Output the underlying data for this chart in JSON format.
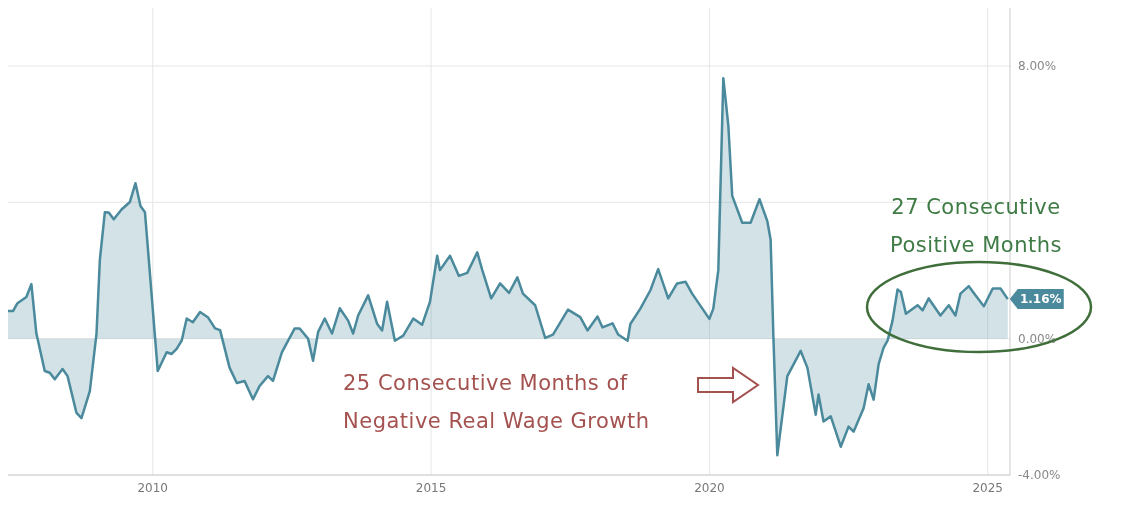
{
  "chart_data": {
    "type": "area",
    "x": [
      2007.4,
      2007.49,
      2007.57,
      2007.73,
      2007.82,
      2007.91,
      2008.06,
      2008.15,
      2008.24,
      2008.38,
      2008.47,
      2008.63,
      2008.72,
      2008.87,
      2008.99,
      2009.05,
      2009.14,
      2009.21,
      2009.3,
      2009.44,
      2009.59,
      2009.69,
      2009.78,
      2009.86,
      2009.91,
      2010.09,
      2010.25,
      2010.34,
      2010.43,
      2010.52,
      2010.61,
      2010.72,
      2010.85,
      2010.99,
      2011.12,
      2011.21,
      2011.38,
      2011.51,
      2011.65,
      2011.8,
      2011.92,
      2012.07,
      2012.16,
      2012.32,
      2012.55,
      2012.64,
      2012.79,
      2012.88,
      2012.97,
      2013.09,
      2013.22,
      2013.36,
      2013.51,
      2013.6,
      2013.69,
      2013.87,
      2014.03,
      2014.12,
      2014.21,
      2014.35,
      2014.5,
      2014.68,
      2014.84,
      2014.98,
      2015.11,
      2015.16,
      2015.34,
      2015.5,
      2015.65,
      2015.83,
      2015.92,
      2016.08,
      2016.24,
      2016.4,
      2016.55,
      2016.65,
      2016.87,
      2017.05,
      2017.19,
      2017.46,
      2017.68,
      2017.81,
      2017.99,
      2018.08,
      2018.26,
      2018.36,
      2018.53,
      2018.58,
      2018.76,
      2018.94,
      2019.08,
      2019.26,
      2019.42,
      2019.57,
      2019.69,
      2020.0,
      2020.07,
      2020.16,
      2020.25,
      2020.34,
      2020.41,
      2020.59,
      2020.74,
      2020.9,
      2021.04,
      2021.1,
      2021.15,
      2021.22,
      2021.4,
      2021.64,
      2021.76,
      2021.91,
      2021.96,
      2022.05,
      2022.18,
      2022.36,
      2022.5,
      2022.59,
      2022.77,
      2022.86,
      2022.95,
      2023.04,
      2023.13,
      2023.2,
      2023.29,
      2023.38,
      2023.44,
      2023.53,
      2023.74,
      2023.83,
      2023.94,
      2024.15,
      2024.3,
      2024.42,
      2024.51,
      2024.66,
      2024.78,
      2024.93,
      2025.09,
      2025.23,
      2025.36
    ],
    "series": [
      {
        "color": "#4a8a9c",
        "values": [
          0.81,
          0.81,
          1.04,
          1.22,
          1.6,
          0.15,
          -0.95,
          -1.0,
          -1.19,
          -0.89,
          -1.1,
          -2.18,
          -2.33,
          -1.54,
          0.15,
          2.31,
          3.71,
          3.7,
          3.5,
          3.79,
          4.01,
          4.56,
          3.89,
          3.71,
          2.71,
          -0.95,
          -0.4,
          -0.45,
          -0.3,
          -0.06,
          0.59,
          0.48,
          0.78,
          0.63,
          0.3,
          0.25,
          -0.85,
          -1.3,
          -1.24,
          -1.78,
          -1.39,
          -1.1,
          -1.24,
          -0.4,
          0.3,
          0.3,
          0.0,
          -0.65,
          0.19,
          0.59,
          0.15,
          0.89,
          0.53,
          0.15,
          0.68,
          1.27,
          0.44,
          0.24,
          1.08,
          -0.06,
          0.09,
          0.59,
          0.41,
          1.08,
          2.43,
          2.01,
          2.43,
          1.84,
          1.93,
          2.53,
          2.01,
          1.18,
          1.62,
          1.34,
          1.8,
          1.32,
          0.98,
          0.02,
          0.12,
          0.85,
          0.63,
          0.24,
          0.65,
          0.33,
          0.45,
          0.12,
          -0.06,
          0.43,
          0.88,
          1.42,
          2.04,
          1.18,
          1.62,
          1.67,
          1.32,
          0.58,
          0.88,
          2.01,
          7.64,
          6.26,
          4.19,
          3.4,
          3.4,
          4.09,
          3.45,
          2.9,
          0.04,
          -3.42,
          -1.1,
          -0.36,
          -0.85,
          -2.23,
          -1.64,
          -2.43,
          -2.28,
          -3.17,
          -2.58,
          -2.73,
          -2.04,
          -1.34,
          -1.79,
          -0.75,
          -0.26,
          -0.06,
          0.53,
          1.44,
          1.37,
          0.73,
          0.98,
          0.83,
          1.18,
          0.68,
          0.98,
          0.68,
          1.32,
          1.54,
          1.27,
          0.95,
          1.47,
          1.47,
          1.16
        ]
      }
    ],
    "xlim": [
      2007.4,
      2025.4
    ],
    "xticks": [
      2010,
      2015,
      2020,
      2025
    ],
    "ylim": [
      -4,
      9.7
    ],
    "yticks": [
      {
        "value": 8,
        "label": "8.00%"
      },
      {
        "value": 4,
        "label": null
      },
      {
        "value": 0,
        "label": "0.00%"
      },
      {
        "value": -4,
        "label": "-4.00%"
      }
    ],
    "grid": true,
    "annotations": [
      "25 Consecutive Months of Negative Real Wage Growth",
      "27 Consecutive Positive Months",
      {
        "text": "1.16%",
        "x": 2025.36,
        "y": 1.16
      }
    ]
  }
}
